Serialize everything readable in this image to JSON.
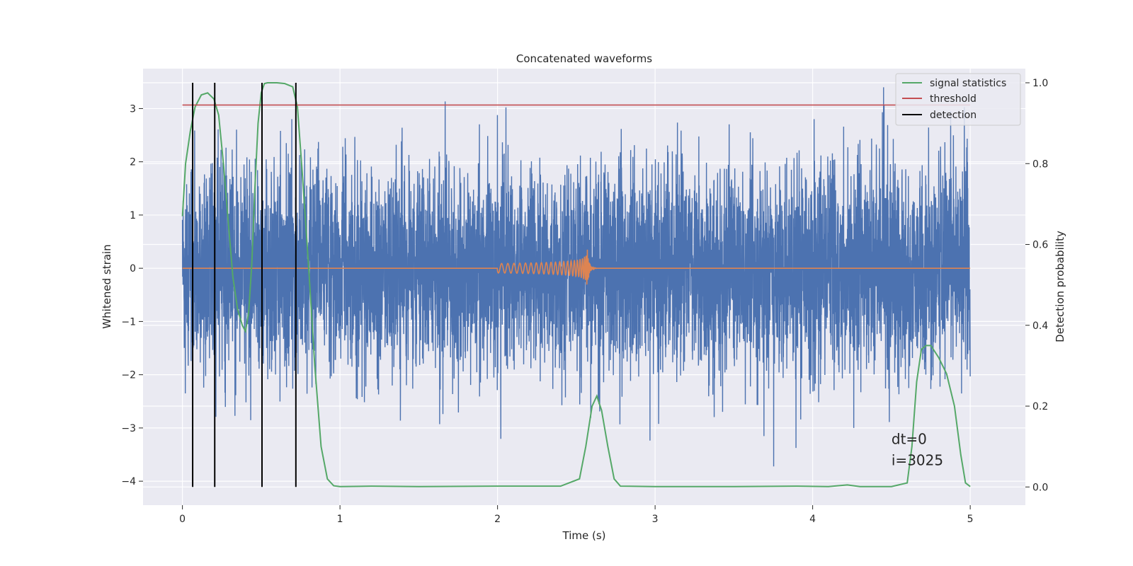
{
  "chart_data": {
    "type": "line",
    "title": "Concatenated waveforms",
    "xlabel": "Time (s)",
    "ylabel": "Whitened strain",
    "y2label": "Detection probability",
    "xlim": [
      -0.25,
      5.35
    ],
    "ylim": [
      -4.45,
      3.75
    ],
    "y2lim": [
      -0.045,
      1.035
    ],
    "xticks": [
      0,
      1,
      2,
      3,
      4,
      5
    ],
    "yticks": [
      -4,
      -3,
      -2,
      -1,
      0,
      1,
      2,
      3
    ],
    "y2ticks": [
      0.0,
      0.2,
      0.4,
      0.6,
      0.8,
      1.0
    ],
    "xtick_labels": [
      "0",
      "1",
      "2",
      "3",
      "4",
      "5"
    ],
    "ytick_labels": [
      "−4",
      "−3",
      "−2",
      "−1",
      "0",
      "1",
      "2",
      "3"
    ],
    "y2tick_labels": [
      "0.0",
      "0.2",
      "0.4",
      "0.6",
      "0.8",
      "1.0"
    ],
    "grid": true,
    "legend_position": "top-right",
    "colors": {
      "strain": "#4c72b0",
      "waveform": "#dd8452",
      "signal_statistics": "#55a868",
      "threshold": "#c44e52",
      "detection": "#000000",
      "background": "#eaeaf2"
    },
    "series": [
      {
        "name": "",
        "kind": "noise",
        "axis": "left",
        "x_range": [
          0,
          5
        ],
        "amplitude_range": [
          -4.1,
          3.4
        ]
      },
      {
        "name": "",
        "kind": "chirp",
        "axis": "left",
        "x_range": [
          2.0,
          2.6
        ],
        "peak_x": 2.57,
        "peak_amplitude": 0.35
      },
      {
        "name": "signal statistics",
        "axis": "right",
        "x": [
          0.0,
          0.02,
          0.05,
          0.08,
          0.12,
          0.16,
          0.2,
          0.23,
          0.26,
          0.29,
          0.32,
          0.35,
          0.38,
          0.4,
          0.42,
          0.44,
          0.46,
          0.48,
          0.5,
          0.52,
          0.54,
          0.56,
          0.6,
          0.65,
          0.7,
          0.73,
          0.76,
          0.8,
          0.84,
          0.88,
          0.92,
          0.96,
          1.0,
          1.2,
          1.5,
          2.0,
          2.4,
          2.52,
          2.56,
          2.6,
          2.63,
          2.66,
          2.7,
          2.74,
          2.78,
          3.0,
          3.5,
          3.9,
          4.1,
          4.22,
          4.3,
          4.5,
          4.6,
          4.63,
          4.66,
          4.69,
          4.72,
          4.75,
          4.8,
          4.85,
          4.9,
          4.94,
          4.97,
          5.0
        ],
        "values": [
          0.67,
          0.8,
          0.88,
          0.94,
          0.97,
          0.975,
          0.96,
          0.92,
          0.8,
          0.66,
          0.52,
          0.44,
          0.4,
          0.385,
          0.43,
          0.55,
          0.74,
          0.9,
          0.975,
          0.998,
          1.0,
          1.0,
          1.0,
          0.998,
          0.99,
          0.94,
          0.78,
          0.55,
          0.3,
          0.1,
          0.02,
          0.003,
          0.001,
          0.002,
          0.001,
          0.002,
          0.002,
          0.02,
          0.1,
          0.2,
          0.225,
          0.19,
          0.1,
          0.02,
          0.002,
          0.001,
          0.001,
          0.002,
          0.001,
          0.005,
          0.001,
          0.001,
          0.01,
          0.1,
          0.26,
          0.34,
          0.35,
          0.35,
          0.32,
          0.28,
          0.2,
          0.08,
          0.01,
          0.001
        ]
      },
      {
        "name": "threshold",
        "axis": "right",
        "x": [
          0,
          5
        ],
        "values": [
          0.945,
          0.945
        ]
      },
      {
        "name": "detection",
        "axis": "right",
        "kind": "vlines",
        "x": [
          0.065,
          0.205,
          0.505,
          0.72
        ],
        "ymin": 0.0,
        "ymax": 1.0
      }
    ],
    "annotations": [
      {
        "text": "dt=0",
        "x": 4.5,
        "y": -3.3
      },
      {
        "text": "i=3025",
        "x": 4.5,
        "y": -3.7
      }
    ]
  }
}
